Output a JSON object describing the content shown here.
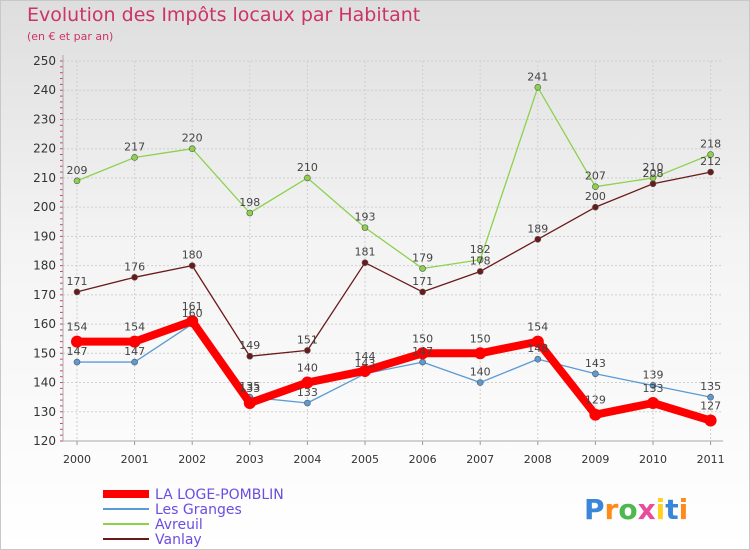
{
  "title": "Evolution des Impôts locaux par Habitant",
  "subtitle": "(en € et par an)",
  "brand": "Proxiti",
  "brand_colors": [
    "#3a86d9",
    "#ff8a1a",
    "#4db84d",
    "#e84d9c",
    "#ffd21f",
    "#3a86d9",
    "#ff8a1a"
  ],
  "chart_data": {
    "type": "line",
    "x": [
      "2000",
      "2001",
      "2002",
      "2003",
      "2004",
      "2005",
      "2006",
      "2007",
      "2008",
      "2009",
      "2010",
      "2011"
    ],
    "ylim": [
      120,
      250
    ],
    "yticks": [
      120,
      130,
      140,
      150,
      160,
      170,
      180,
      190,
      200,
      210,
      220,
      230,
      240,
      250
    ],
    "grid": true,
    "legend": "bottom-left",
    "series": [
      {
        "name": "Vanlay",
        "color": "#6b1a1a",
        "values": [
          171,
          176,
          180,
          149,
          151,
          181,
          171,
          178,
          189,
          200,
          208,
          212
        ]
      },
      {
        "name": "Avreuil",
        "color": "#8cd24d",
        "values": [
          209,
          217,
          220,
          198,
          210,
          193,
          179,
          182,
          241,
          207,
          210,
          218
        ]
      },
      {
        "name": "Les Granges",
        "color": "#5a9bd5",
        "values": [
          147,
          147,
          160,
          135,
          133,
          143,
          147,
          140,
          148,
          143,
          139,
          135
        ]
      },
      {
        "name": "LA LOGE-POMBLIN",
        "color": "#ff0000",
        "values": [
          154,
          154,
          161,
          133,
          140,
          144,
          150,
          150,
          154,
          129,
          133,
          127
        ]
      }
    ]
  }
}
